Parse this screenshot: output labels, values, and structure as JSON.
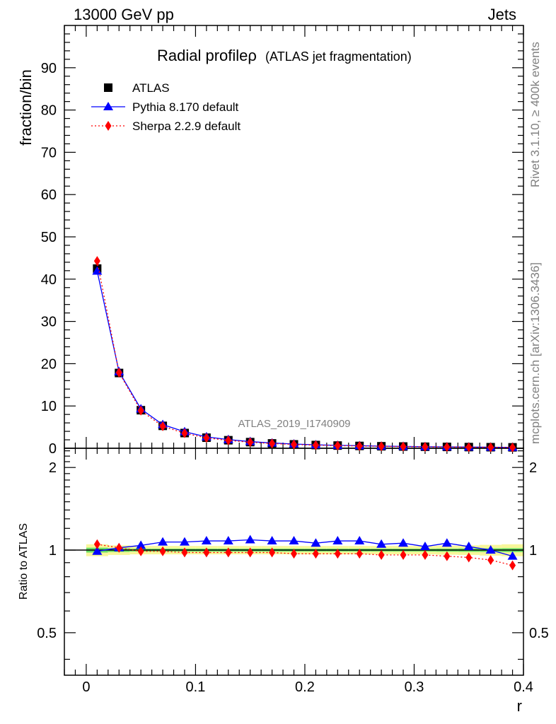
{
  "header": {
    "left": "13000 GeV pp",
    "right": "Jets"
  },
  "side": {
    "rivet": "Rivet 3.1.10, ≥ 400k events",
    "mcplots": "mcplots.cern.ch [arXiv:1306.3436]"
  },
  "watermark": "ATLAS_2019_I1740909",
  "chart_data": {
    "type": "scatter",
    "title": "Radial profileρ",
    "subtitle": "(ATLAS jet fragmentation)",
    "xlabel": "r",
    "ylabel": "fraction/bin",
    "ratio_ylabel": "Ratio to ATLAS",
    "xlim": [
      -0.02,
      0.4
    ],
    "ylim": [
      0,
      100
    ],
    "ratio_ylim": [
      0.35,
      2.35
    ],
    "x_ticks": [
      "0",
      "0.1",
      "0.2",
      "0.3",
      "0.4"
    ],
    "y_ticks": [
      "0",
      "10",
      "20",
      "30",
      "40",
      "50",
      "60",
      "70",
      "80",
      "90"
    ],
    "ratio_ticks": [
      "0.5",
      "1",
      "2"
    ],
    "legend_position": "top-left",
    "x": [
      0.01,
      0.03,
      0.05,
      0.07,
      0.09,
      0.11,
      0.13,
      0.15,
      0.17,
      0.19,
      0.21,
      0.23,
      0.25,
      0.27,
      0.29,
      0.31,
      0.33,
      0.35,
      0.37,
      0.39
    ],
    "series": [
      {
        "name": "ATLAS",
        "color": "#000000",
        "marker": "square",
        "values": [
          42.5,
          17.8,
          9.0,
          5.3,
          3.6,
          2.5,
          1.9,
          1.45,
          1.15,
          0.92,
          0.76,
          0.64,
          0.55,
          0.47,
          0.41,
          0.36,
          0.32,
          0.28,
          0.25,
          0.22
        ],
        "ratio": [
          1,
          1,
          1,
          1,
          1,
          1,
          1,
          1,
          1,
          1,
          1,
          1,
          1,
          1,
          1,
          1,
          1,
          1,
          1,
          1
        ]
      },
      {
        "name": "Pythia 8.170 default",
        "color": "#0000ff",
        "marker": "triangle",
        "line": "solid",
        "values": [
          41.9,
          18.1,
          9.3,
          5.6,
          3.9,
          2.7,
          2.05,
          1.58,
          1.24,
          1.0,
          0.81,
          0.69,
          0.6,
          0.49,
          0.44,
          0.37,
          0.34,
          0.29,
          0.25,
          0.21
        ],
        "ratio": [
          0.99,
          1.02,
          1.04,
          1.07,
          1.07,
          1.08,
          1.08,
          1.09,
          1.08,
          1.08,
          1.06,
          1.08,
          1.08,
          1.05,
          1.06,
          1.03,
          1.06,
          1.03,
          1.0,
          0.95
        ]
      },
      {
        "name": "Sherpa 2.2.9 default",
        "color": "#ff0000",
        "marker": "diamond",
        "line": "dotted",
        "values": [
          44.3,
          17.9,
          8.9,
          5.2,
          3.55,
          2.45,
          1.86,
          1.42,
          1.12,
          0.89,
          0.73,
          0.62,
          0.53,
          0.45,
          0.39,
          0.34,
          0.3,
          0.26,
          0.23,
          0.19
        ],
        "ratio": [
          1.05,
          1.02,
          0.99,
          0.99,
          0.98,
          0.98,
          0.98,
          0.98,
          0.98,
          0.97,
          0.97,
          0.97,
          0.97,
          0.96,
          0.96,
          0.96,
          0.95,
          0.94,
          0.92,
          0.88
        ]
      }
    ],
    "uncertainty_band": {
      "stat_color": "#66dd66",
      "total_color": "#f7f79a",
      "stat_half": [
        0.02,
        0.015,
        0.012,
        0.012,
        0.012,
        0.012,
        0.012,
        0.012,
        0.012,
        0.012,
        0.012,
        0.012,
        0.012,
        0.012,
        0.012,
        0.012,
        0.013,
        0.014,
        0.015,
        0.016
      ],
      "total_half": [
        0.05,
        0.04,
        0.035,
        0.035,
        0.035,
        0.035,
        0.035,
        0.035,
        0.035,
        0.035,
        0.035,
        0.035,
        0.035,
        0.035,
        0.035,
        0.035,
        0.038,
        0.04,
        0.045,
        0.05
      ]
    }
  }
}
